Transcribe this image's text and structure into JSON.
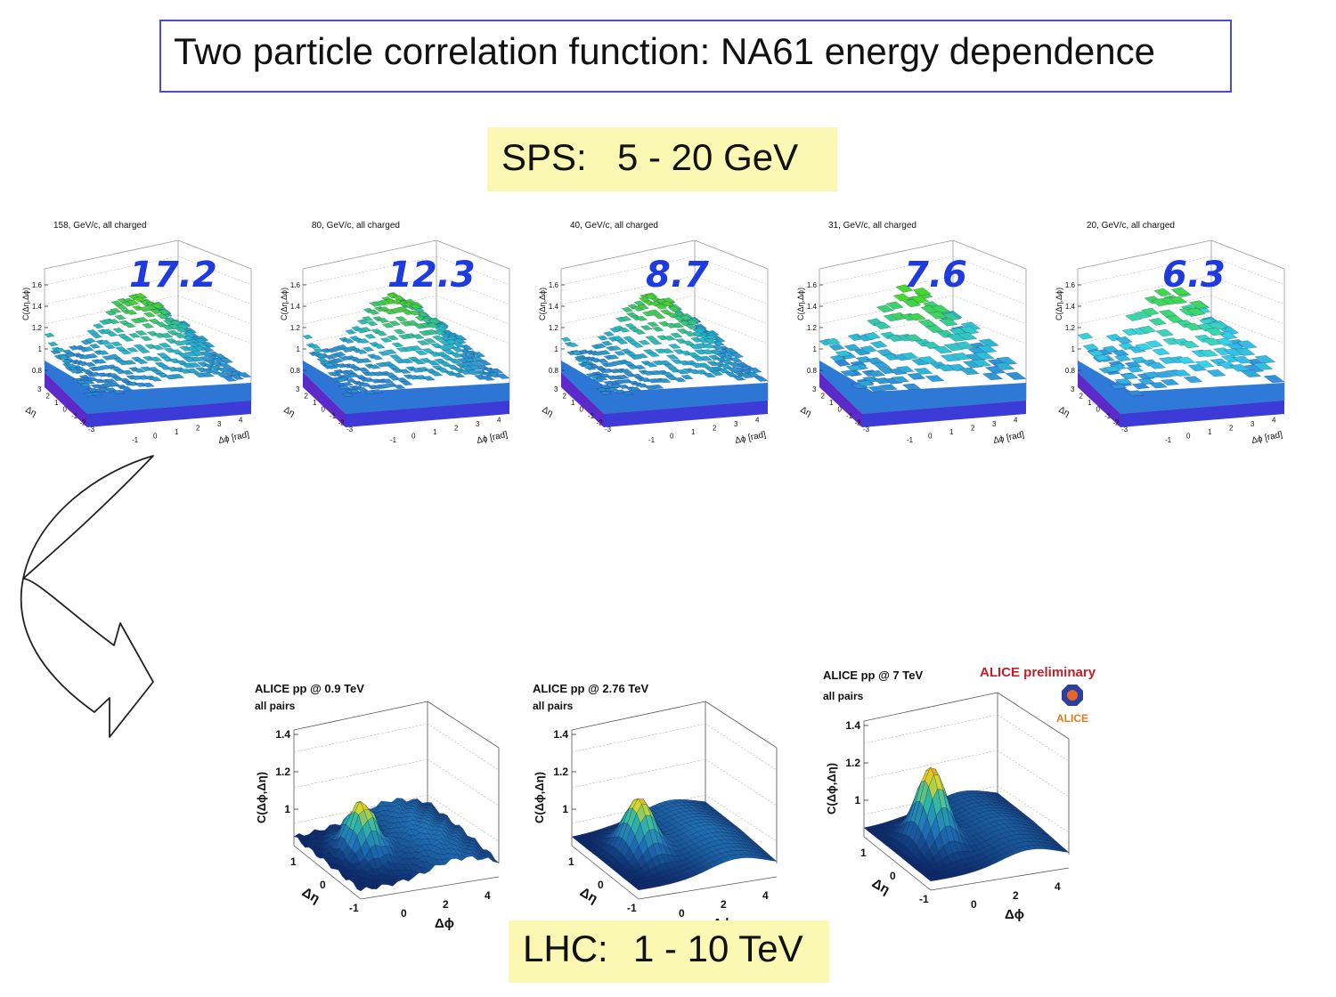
{
  "title": "Two particle correlation function: NA61 energy dependence",
  "sps_label": {
    "name": "SPS:",
    "range": "5 - 20 GeV"
  },
  "lhc_label": {
    "name": "LHC:",
    "range": "1 - 10 TeV"
  },
  "na61_axes": {
    "zlabel": "C(Δη,Δϕ)",
    "z_ticks": [
      "1.6",
      "1.4",
      "1.2",
      "1",
      "0.8"
    ],
    "eta_label": "Δη",
    "eta_ticks": [
      "3",
      "2",
      "1",
      "0",
      "-1",
      "-2",
      "-3"
    ],
    "phi_label": "Δϕ [rad]",
    "phi_ticks": [
      "-1",
      "0",
      "1",
      "2",
      "3",
      "4"
    ]
  },
  "na61_plots": [
    {
      "header": "158, GeV/c, all charged",
      "annotation": "17.2",
      "colors": {
        "low": "#2e6fd6",
        "mid": "#27b9c7",
        "high": "#4fd31e"
      }
    },
    {
      "header": "80, GeV/c, all charged",
      "annotation": "12.3",
      "colors": {
        "low": "#2e6fd6",
        "mid": "#27b9c7",
        "high": "#4fd31e"
      }
    },
    {
      "header": "40, GeV/c, all charged",
      "annotation": "8.7",
      "colors": {
        "low": "#2e6fd6",
        "mid": "#27b9c7",
        "high": "#4fd31e"
      }
    },
    {
      "header": "31, GeV/c, all charged",
      "annotation": "7.6",
      "colors": {
        "low": "#2e6fd6",
        "mid": "#2fc4d6",
        "high": "#47d82c"
      }
    },
    {
      "header": "20, GeV/c, all charged",
      "annotation": "6.3",
      "colors": {
        "low": "#2e6fd6",
        "mid": "#36d4e6",
        "high": "#3fd84a"
      }
    }
  ],
  "alice_axes": {
    "zlabel": "C(Δϕ,Δη)",
    "z_ticks": [
      "1.4",
      "1.2",
      "1"
    ],
    "eta_label": "Δη",
    "eta_ticks": [
      "1",
      "0",
      "-1"
    ],
    "phi_label": "Δϕ",
    "phi_ticks": [
      "0",
      "2",
      "4"
    ]
  },
  "alice_plots": [
    {
      "title": "ALICE pp @ 0.9 TeV",
      "subtitle": "all pairs"
    },
    {
      "title": "ALICE pp @ 2.76 TeV",
      "subtitle": "all pairs"
    },
    {
      "title": "ALICE pp @ 7 TeV",
      "subtitle": "all pairs"
    }
  ],
  "alice_preliminary": "ALICE preliminary",
  "alice_logo_text": "ALICE",
  "colors": {
    "title_border": "#4a4acc",
    "label_bg": "#fbf8b3",
    "annotation": "#1e3be0",
    "preliminary": "#c0202a"
  }
}
